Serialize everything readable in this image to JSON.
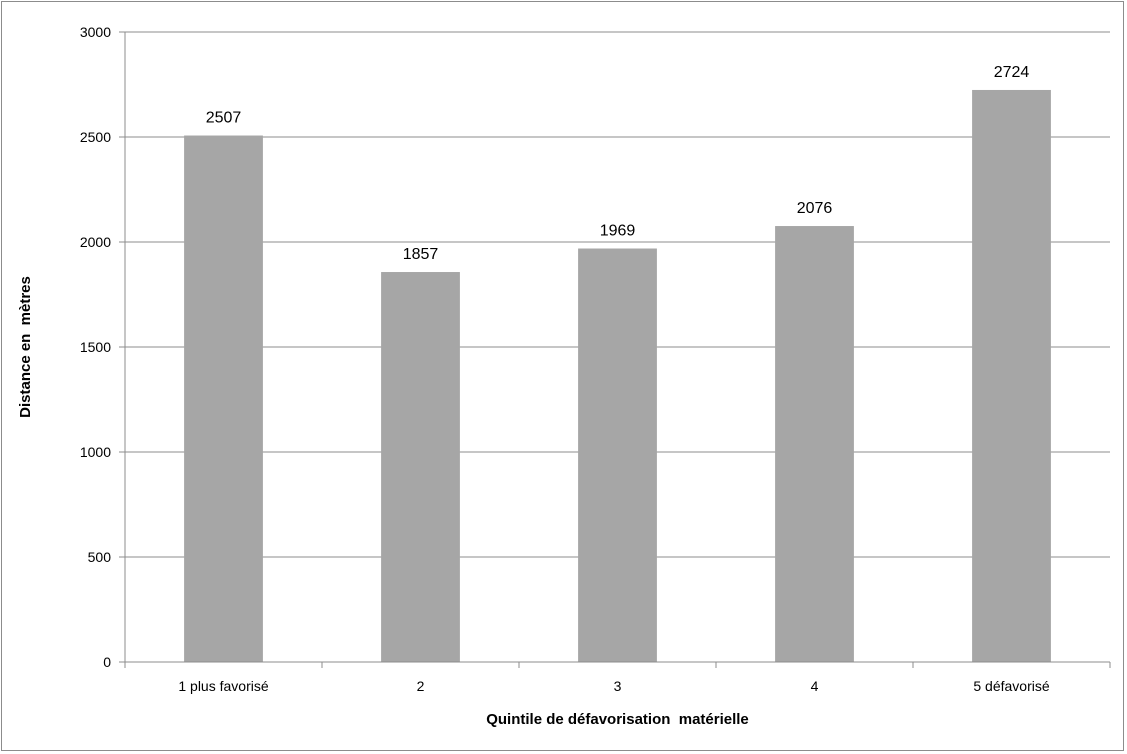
{
  "chart_data": {
    "type": "bar",
    "title": "",
    "xlabel": "Quintile de défavorisation  matérielle",
    "ylabel": "Distance en  mètres",
    "categories": [
      "1 plus favorisé",
      "2",
      "3",
      "4",
      "5 défavorisé"
    ],
    "values": [
      2507,
      1857,
      1969,
      2076,
      2724
    ],
    "data_labels": [
      "2507",
      "1857",
      "1969",
      "2076",
      "2724"
    ],
    "ylim": [
      0,
      3000
    ],
    "y_ticks": [
      0,
      500,
      1000,
      1500,
      2000,
      2500,
      3000
    ],
    "y_tick_labels": [
      "0",
      "500",
      "1000",
      "1500",
      "2000",
      "2500",
      "3000"
    ],
    "grid": true,
    "legend": "none",
    "colors": {
      "bar": "#a6a6a6",
      "grid": "#8c8c8c",
      "axis": "#8c8c8c",
      "border": "#8c8c8c"
    }
  }
}
